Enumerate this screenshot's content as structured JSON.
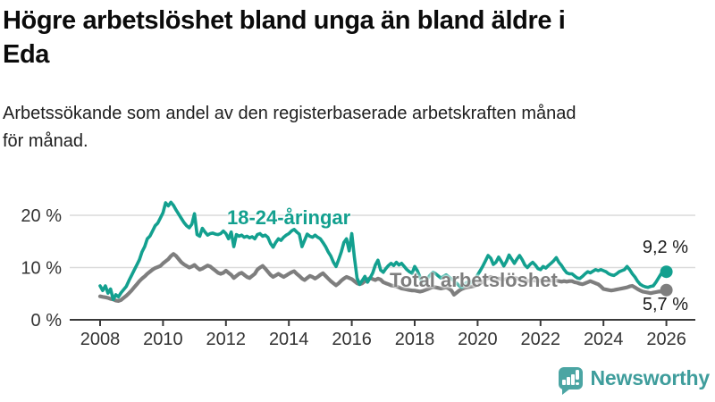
{
  "header": {
    "title": "Högre arbetslöshet bland unga än bland äldre i Eda",
    "title_lines": [
      "Högre arbetslöshet bland unga än bland äldre i",
      "Eda"
    ],
    "subtitle": "Arbetssökande som andel av den registerbaserade arbetskraften månad för månad.",
    "subtitle_lines": [
      "Arbetssökande som andel av den registerbaserade arbetskraften månad",
      "för månad."
    ]
  },
  "chart_data": {
    "type": "line",
    "title": "Högre arbetslöshet bland unga än bland äldre i Eda",
    "xlabel": "",
    "ylabel": "",
    "x_unit": "month",
    "x_range": [
      "2008-01",
      "2026-01"
    ],
    "xticks": [
      2008,
      2010,
      2012,
      2014,
      2016,
      2018,
      2020,
      2022,
      2024,
      2026
    ],
    "yticks": [
      {
        "value": 0,
        "label": "0 %"
      },
      {
        "value": 10,
        "label": "10 %"
      },
      {
        "value": 20,
        "label": "20 %"
      }
    ],
    "ylim": [
      0,
      23
    ],
    "grid": "horizontal",
    "legend": "inline-labels",
    "colors": {
      "grid": "#dadada",
      "axis": "#3a3a3a",
      "tick_text": "#333333",
      "end_label_text": "#1a1a1a"
    },
    "series": [
      {
        "name": "18-24-åringar",
        "color": "#13a08f",
        "end_label": "9,2 %",
        "last_value": 9.2,
        "values": [
          6.5,
          5.6,
          6.5,
          5.1,
          5.9,
          3.9,
          4.8,
          4.4,
          5.2,
          5.8,
          6.4,
          7.5,
          8.5,
          9.5,
          10.5,
          11.5,
          13,
          14,
          15.5,
          16,
          17,
          18,
          18.5,
          19.5,
          20.5,
          22.4,
          21.8,
          22.5,
          21.9,
          21,
          20.2,
          19.4,
          18.6,
          18,
          17.6,
          18.3,
          20.3,
          16.3,
          16,
          17.5,
          16.8,
          16.2,
          16.5,
          16.6,
          16.4,
          16.3,
          16.5,
          17,
          16.5,
          15.5,
          16.8,
          14,
          16.3,
          16,
          16.2,
          15.8,
          16,
          15.7,
          15.9,
          15.5,
          16.3,
          16.5,
          16,
          16.2,
          15.8,
          14.6,
          13.9,
          14.8,
          15.5,
          15.2,
          15.8,
          16.2,
          16.5,
          17,
          17.3,
          16.8,
          16.4,
          14,
          15.2,
          16.4,
          16,
          15.8,
          16.2,
          15.8,
          15.5,
          14.8,
          14,
          13,
          12.2,
          11,
          10.2,
          11.5,
          13,
          14.8,
          15.5,
          13.2,
          16.5,
          12,
          8,
          6.8,
          7.5,
          8.3,
          7.2,
          8,
          9,
          10.5,
          11.4,
          9.5,
          9.1,
          9.8,
          10.4,
          10.8,
          10.4,
          11,
          10.5,
          10.8,
          10.2,
          9.6,
          9.2,
          8.9,
          10.2,
          9.4,
          8.2,
          7,
          7.4,
          8,
          8.6,
          9.1,
          8.8,
          8.4,
          8,
          8.3,
          8.6,
          8.2,
          7.8,
          7.4,
          7,
          6.5,
          6.2,
          6.8,
          7.2,
          7,
          7.4,
          7.8,
          8.6,
          9.4,
          10.3,
          11.3,
          12.3,
          11.8,
          10.6,
          11,
          12,
          11.2,
          10.3,
          11.2,
          12.4,
          11.6,
          10.8,
          11.6,
          12.3,
          11.5,
          10.5,
          10,
          10.6,
          11,
          10.5,
          9.8,
          9.6,
          10.2,
          9.9,
          10.4,
          10.8,
          11.3,
          11.9,
          11,
          10.4,
          9.6,
          9,
          8.8,
          8.8,
          8.4,
          8,
          7.9,
          8.3,
          8.8,
          9.2,
          9,
          9.3,
          9.6,
          9.4,
          9.6,
          9.4,
          9.2,
          8.8,
          8.6,
          8.5,
          8.8,
          9.2,
          9.4,
          9.6,
          10.2,
          9.6,
          8.8,
          8.2,
          7.4,
          6.8,
          6.5,
          6.3,
          6.2,
          6.4,
          6.5,
          7.2,
          8,
          8.8,
          9,
          9.2
        ]
      },
      {
        "name": "Total arbetslöshet",
        "color": "#7e7e7e",
        "end_label": "5,7 %",
        "last_value": 5.7,
        "values": [
          4.5,
          4.4,
          4.3,
          4.2,
          4,
          3.9,
          3.7,
          3.6,
          3.8,
          4.2,
          4.6,
          5.1,
          5.6,
          6.2,
          6.8,
          7.4,
          7.9,
          8.3,
          8.8,
          9.2,
          9.6,
          9.9,
          10.1,
          10.3,
          10.8,
          11.2,
          11.6,
          12.2,
          12.6,
          12.2,
          11.6,
          11,
          10.6,
          10.3,
          10,
          10.2,
          10.5,
          10,
          9.6,
          9.8,
          10.1,
          10.4,
          10.2,
          9.8,
          9.4,
          9,
          8.8,
          9,
          9.4,
          9,
          8.6,
          8,
          8.4,
          8.8,
          9,
          8.6,
          8.2,
          8,
          8.4,
          8.8,
          9.6,
          10,
          10.3,
          9.8,
          9.2,
          8.6,
          8.2,
          8.5,
          8.8,
          8.5,
          8.2,
          8.5,
          8.8,
          9.1,
          9.3,
          8.8,
          8.4,
          7.9,
          7.6,
          8,
          8.4,
          8.2,
          7.9,
          8.2,
          8.6,
          8.9,
          8.4,
          7.9,
          7.4,
          7,
          6.6,
          7,
          7.5,
          7.9,
          8.2,
          8,
          7.8,
          7.4,
          7,
          6.8,
          7,
          7.4,
          7.7,
          8,
          7.8,
          7.6,
          7.9,
          7.7,
          7.2,
          7,
          6.8,
          6.6,
          6.5,
          6.4,
          6.2,
          6,
          5.9,
          5.8,
          5.7,
          5.6,
          5.6,
          5.5,
          5.4,
          5.5,
          5.7,
          5.9,
          6.1,
          6.3,
          6.2,
          6.1,
          6,
          6.1,
          6.2,
          6,
          5.6,
          4.8,
          5.2,
          5.6,
          5.9,
          6.1,
          6.2,
          6.3,
          6.4,
          6.5,
          6.8,
          7,
          7.3,
          7.7,
          8,
          8.2,
          8,
          7.8,
          7.9,
          7.8,
          7.7,
          7.8,
          8,
          8.1,
          8,
          7.9,
          7.8,
          7.7,
          7.5,
          7.4,
          7.5,
          7.6,
          7.5,
          7.4,
          7.5,
          7.6,
          7.5,
          7.4,
          7.5,
          7.6,
          7.5,
          7.4,
          7.3,
          7.4,
          7.3,
          7.4,
          7.4,
          7.2,
          7.1,
          6.9,
          6.8,
          7,
          7.2,
          7.4,
          7.2,
          7,
          6.8,
          6.4,
          5.9,
          5.8,
          5.7,
          5.6,
          5.7,
          5.8,
          5.9,
          6,
          6.1,
          6.2,
          6.4,
          6.5,
          6.2,
          5.9,
          5.6,
          5.4,
          5.3,
          5.2,
          5.1,
          5.2,
          5.3,
          5.4,
          5.4,
          5.5,
          5.7
        ]
      }
    ]
  },
  "branding": {
    "logo_text": "Newsworthy",
    "logo_color": "#3f9d9c",
    "icon_color": "#4ba5a3"
  }
}
